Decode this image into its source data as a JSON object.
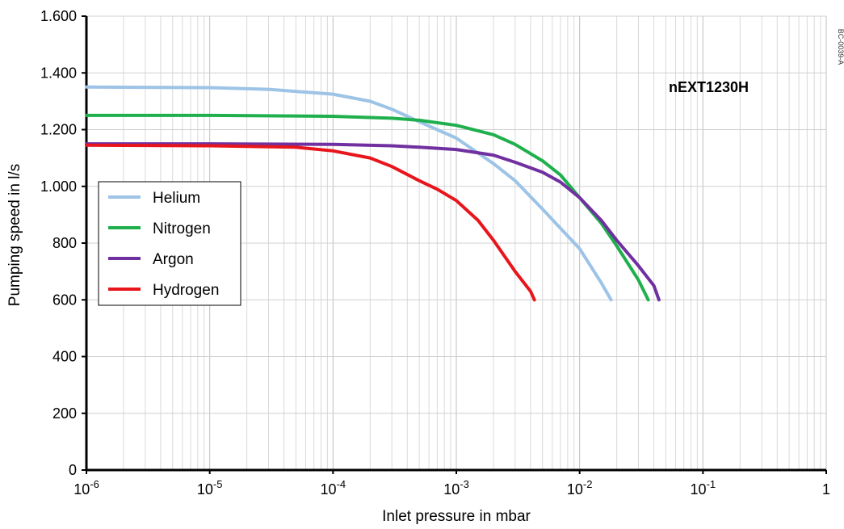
{
  "chart_data": {
    "type": "line",
    "xlabel": "Inlet pressure in mbar",
    "ylabel": "Pumping speed in l/s",
    "xscale": "log",
    "xlim": [
      1e-06,
      1
    ],
    "ylim": [
      0,
      1600
    ],
    "grid": true,
    "legend_position": "left",
    "x_tick_labels": [
      {
        "base": "10",
        "exp": "-6"
      },
      {
        "base": "10",
        "exp": "-5"
      },
      {
        "base": "10",
        "exp": "-4"
      },
      {
        "base": "10",
        "exp": "-3"
      },
      {
        "base": "10",
        "exp": "-2"
      },
      {
        "base": "10",
        "exp": "-1"
      },
      {
        "base": "1",
        "exp": ""
      }
    ],
    "y_ticks": [
      0,
      200,
      400,
      600,
      800,
      1000,
      1200,
      1400,
      1600
    ],
    "y_tick_labels": [
      "0",
      "200",
      "400",
      "600",
      "800",
      "1.000",
      "1.200",
      "1.400",
      "1.600"
    ],
    "annotations": [
      "nEXT1230H",
      "BC-0039-A"
    ],
    "series": [
      {
        "name": "Helium",
        "color": "#9dc3e6",
        "x": [
          1e-06,
          1e-05,
          3e-05,
          0.0001,
          0.0002,
          0.0003,
          0.0005,
          0.001,
          0.002,
          0.003,
          0.005,
          0.01,
          0.015,
          0.018
        ],
        "y": [
          1350,
          1348,
          1342,
          1325,
          1300,
          1272,
          1228,
          1170,
          1080,
          1020,
          920,
          780,
          660,
          600
        ]
      },
      {
        "name": "Nitrogen",
        "color": "#1fb04d",
        "x": [
          1e-06,
          1e-05,
          0.0001,
          0.0003,
          0.0005,
          0.001,
          0.002,
          0.003,
          0.005,
          0.007,
          0.01,
          0.015,
          0.02,
          0.03,
          0.036
        ],
        "y": [
          1250,
          1250,
          1247,
          1240,
          1233,
          1215,
          1182,
          1148,
          1090,
          1040,
          960,
          870,
          790,
          670,
          600
        ]
      },
      {
        "name": "Argon",
        "color": "#7030a0",
        "x": [
          1e-06,
          1e-05,
          0.0001,
          0.0003,
          0.0005,
          0.001,
          0.002,
          0.003,
          0.005,
          0.007,
          0.01,
          0.015,
          0.02,
          0.03,
          0.04,
          0.044
        ],
        "y": [
          1150,
          1150,
          1148,
          1143,
          1138,
          1130,
          1110,
          1085,
          1050,
          1015,
          960,
          880,
          810,
          720,
          650,
          600
        ]
      },
      {
        "name": "Hydrogen",
        "color": "#e8161c",
        "x": [
          1e-06,
          1e-05,
          5e-05,
          0.0001,
          0.0002,
          0.0003,
          0.0005,
          0.0007,
          0.001,
          0.0015,
          0.002,
          0.003,
          0.004,
          0.0043
        ],
        "y": [
          1145,
          1143,
          1138,
          1125,
          1100,
          1070,
          1020,
          990,
          950,
          880,
          810,
          700,
          630,
          600
        ]
      }
    ]
  }
}
